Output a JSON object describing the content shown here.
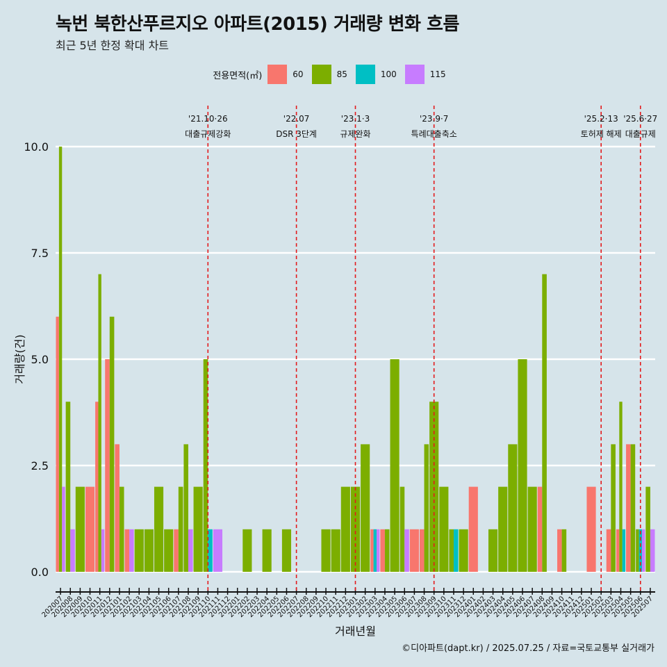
{
  "title": "녹번 북한산푸르지오 아파트(2015) 거래량 변화 흐름",
  "subtitle": "최근 5년 한정 확대 차트",
  "legend": {
    "title": "전용면적(㎡)",
    "items": [
      {
        "label": "60",
        "color": "#f8766d"
      },
      {
        "label": "85",
        "color": "#7cae00"
      },
      {
        "label": "100",
        "color": "#00bfc4"
      },
      {
        "label": "115",
        "color": "#c77cff"
      }
    ]
  },
  "caption": "©디아파트(dapt.kr) / 2025.07.25 / 자료=국토교통부 실거래가",
  "chart_data": {
    "type": "bar",
    "xlabel": "거래년월",
    "ylabel": "거래량(건)",
    "ylim": [
      0,
      10
    ],
    "yticks": [
      "0.0",
      "2.5",
      "5.0",
      "7.5",
      "10.0"
    ],
    "grid": true,
    "legend_position": "top",
    "categories": [
      "202007",
      "202008",
      "202009",
      "202010",
      "202011",
      "202012",
      "202101",
      "202102",
      "202103",
      "202104",
      "202105",
      "202106",
      "202107",
      "202108",
      "202109",
      "202110",
      "202111",
      "202112",
      "202201",
      "202202",
      "202203",
      "202204",
      "202205",
      "202206",
      "202207",
      "202208",
      "202209",
      "202210",
      "202211",
      "202212",
      "202301",
      "202302",
      "202303",
      "202304",
      "202305",
      "202306",
      "202307",
      "202308",
      "202309",
      "202310",
      "202311",
      "202312",
      "202401",
      "202402",
      "202403",
      "202404",
      "202405",
      "202406",
      "202407",
      "202408",
      "202409",
      "202410",
      "202411",
      "202412",
      "202501",
      "202502",
      "202503",
      "202504",
      "202505",
      "202506",
      "202507"
    ],
    "series": [
      {
        "name": "60",
        "color": "#f8766d",
        "values": [
          6,
          0,
          0,
          2,
          4,
          5,
          3,
          1,
          0,
          0,
          0,
          0,
          1,
          0,
          0,
          0,
          0,
          0,
          0,
          0,
          0,
          0,
          0,
          0,
          0,
          0,
          0,
          0,
          0,
          0,
          0,
          0,
          1,
          1,
          0,
          0,
          1,
          1,
          0,
          0,
          0,
          0,
          2,
          0,
          0,
          0,
          0,
          0,
          0,
          2,
          0,
          1,
          0,
          0,
          2,
          0,
          1,
          1,
          3,
          0,
          0
        ]
      },
      {
        "name": "85",
        "color": "#7cae00",
        "values": [
          10,
          4,
          2,
          0,
          7,
          6,
          2,
          0,
          1,
          1,
          2,
          1,
          2,
          3,
          2,
          5,
          0,
          0,
          0,
          1,
          0,
          1,
          0,
          1,
          0,
          0,
          0,
          1,
          1,
          2,
          2,
          3,
          0,
          1,
          5,
          2,
          0,
          3,
          4,
          2,
          1,
          1,
          0,
          0,
          1,
          2,
          3,
          5,
          2,
          7,
          0,
          1,
          0,
          0,
          0,
          0,
          3,
          4,
          3,
          1,
          2
        ]
      },
      {
        "name": "100",
        "color": "#00bfc4",
        "values": [
          0,
          0,
          0,
          0,
          0,
          0,
          0,
          0,
          0,
          0,
          0,
          0,
          0,
          0,
          0,
          1,
          0,
          0,
          0,
          0,
          0,
          0,
          0,
          0,
          0,
          0,
          0,
          0,
          0,
          0,
          0,
          0,
          1,
          0,
          0,
          0,
          0,
          0,
          0,
          0,
          1,
          0,
          0,
          0,
          0,
          0,
          0,
          0,
          0,
          0,
          0,
          0,
          0,
          0,
          0,
          0,
          0,
          1,
          0,
          1,
          0
        ]
      },
      {
        "name": "115",
        "color": "#c77cff",
        "values": [
          2,
          1,
          0,
          0,
          1,
          0,
          0,
          1,
          0,
          0,
          0,
          0,
          0,
          1,
          0,
          0,
          1,
          0,
          0,
          0,
          0,
          0,
          0,
          0,
          0,
          0,
          0,
          0,
          0,
          0,
          0,
          0,
          1,
          0,
          0,
          1,
          0,
          0,
          0,
          0,
          0,
          0,
          0,
          0,
          0,
          0,
          0,
          0,
          0,
          0,
          0,
          0,
          0,
          0,
          0,
          0,
          0,
          0,
          0,
          1,
          1
        ]
      }
    ],
    "annotations": [
      {
        "date": "202110",
        "line1": "'21.10·26",
        "line2": "대출규제강화"
      },
      {
        "date": "202207",
        "line1": "'22.07",
        "line2": "DSR 3단계"
      },
      {
        "date": "202301",
        "line1": "'23.1·3",
        "line2": "규제완화"
      },
      {
        "date": "202309",
        "line1": "'23.9·7",
        "line2": "특례대출축소"
      },
      {
        "date": "202502",
        "line1": "'25.2·13",
        "line2": "토허제 해제"
      },
      {
        "date": "202506",
        "line1": "'25.6·27",
        "line2": "대출규제"
      }
    ]
  }
}
